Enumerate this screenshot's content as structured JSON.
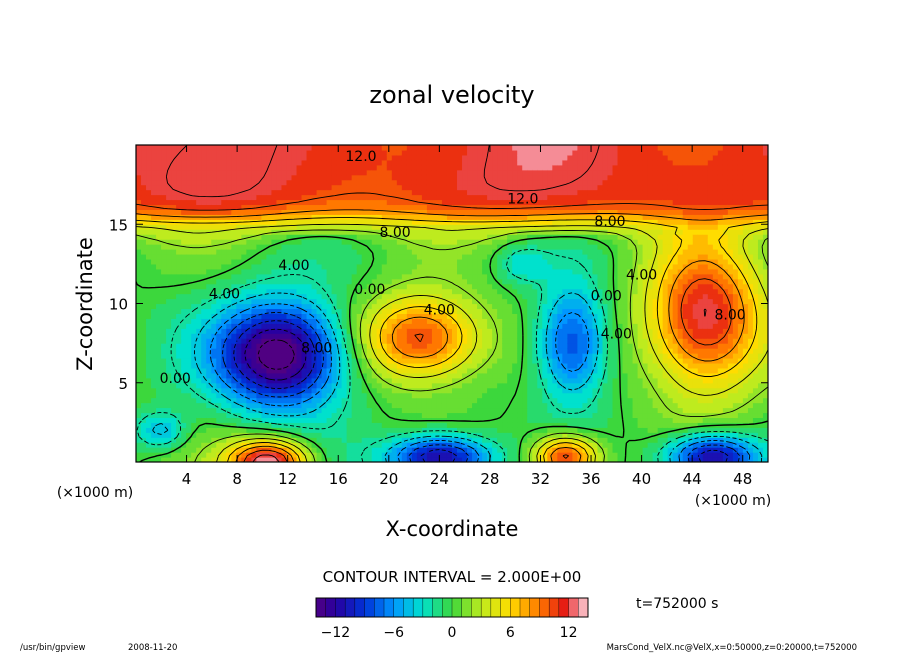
{
  "chart_data": {
    "type": "heatmap",
    "title": "zonal velocity",
    "xlabel": "X-coordinate",
    "ylabel": "Z-coordinate",
    "x_unit_label": "(×1000 m)",
    "y_unit_label": "(×1000 m)",
    "xlim": [
      0,
      50
    ],
    "ylim": [
      0,
      20
    ],
    "x_ticks": [
      4,
      8,
      12,
      16,
      20,
      24,
      28,
      32,
      36,
      40,
      44,
      48
    ],
    "y_ticks": [
      5,
      10,
      15
    ],
    "contour_interval_label": "CONTOUR INTERVAL = 2.000E+00",
    "contour_labels": [
      {
        "text": "12.0",
        "x": 17.8,
        "z": 19.0
      },
      {
        "text": "12.0",
        "x": 30.6,
        "z": 16.3
      },
      {
        "text": "8.00",
        "x": 20.5,
        "z": 14.2
      },
      {
        "text": "8.00",
        "x": 37.5,
        "z": 14.9
      },
      {
        "text": "4.00",
        "x": 12.5,
        "z": 12.1
      },
      {
        "text": "4.00",
        "x": 7.0,
        "z": 10.3
      },
      {
        "text": "0.00",
        "x": 18.5,
        "z": 10.6
      },
      {
        "text": "4.00",
        "x": 24.0,
        "z": 9.3
      },
      {
        "text": "0.00",
        "x": 37.2,
        "z": 10.2
      },
      {
        "text": "4.00",
        "x": 38.0,
        "z": 7.8
      },
      {
        "text": "4.00",
        "x": 40.0,
        "z": 11.5
      },
      {
        "text": "8.00",
        "x": 47.0,
        "z": 9.0
      },
      {
        "text": "8.00",
        "x": 14.3,
        "z": 6.9
      },
      {
        "text": "0.00",
        "x": 3.1,
        "z": 5.0
      }
    ],
    "fields": [
      {
        "type": "band",
        "z_center": 18,
        "amplitude": 12.5
      },
      {
        "type": "cell",
        "x": 11.5,
        "z": 6.8,
        "sx": 5.0,
        "sz": 3.3,
        "amplitude": -16
      },
      {
        "type": "cell",
        "x": 22.6,
        "z": 7.8,
        "sx": 4.8,
        "sz": 2.7,
        "amplitude": 11.5
      },
      {
        "type": "cell",
        "x": 34.5,
        "z": 7.5,
        "sx": 2.8,
        "sz": 3.5,
        "amplitude": -9.5
      },
      {
        "type": "cell",
        "x": 45.0,
        "z": 9.0,
        "sx": 4.6,
        "sz": 4.6,
        "amplitude": 13
      },
      {
        "type": "cell",
        "x": 10.5,
        "z": 0.0,
        "sx": 3.2,
        "sz": 1.5,
        "amplitude": 14
      },
      {
        "type": "cell",
        "x": 24.0,
        "z": 0.3,
        "sx": 4.0,
        "sz": 1.4,
        "amplitude": -13
      },
      {
        "type": "cell",
        "x": 34.0,
        "z": 0.3,
        "sx": 2.6,
        "sz": 1.4,
        "amplitude": 12
      },
      {
        "type": "cell",
        "x": 45.5,
        "z": 0.3,
        "sx": 3.6,
        "sz": 1.5,
        "amplitude": -13
      },
      {
        "type": "cell",
        "x": 30.5,
        "z": 12.5,
        "sx": 2.0,
        "sz": 1.2,
        "amplitude": -3
      },
      {
        "type": "cell",
        "x": 2.0,
        "z": 2.0,
        "sx": 2.0,
        "sz": 1.2,
        "amplitude": -5
      }
    ],
    "colorbar": {
      "min": -14,
      "max": 14,
      "step": 1,
      "tick_values": [
        -12,
        -6,
        0,
        6,
        12
      ],
      "tick_labels": [
        "−12",
        "−6",
        "0",
        "6",
        "12"
      ]
    },
    "time_label": "t=752000 s",
    "grid": false
  },
  "footer": {
    "program": "/usr/bin/gpview",
    "date": "2008-11-20",
    "source": "MarsCond_VelX.nc@VelX,x=0:50000,z=0:20000,t=752000"
  }
}
